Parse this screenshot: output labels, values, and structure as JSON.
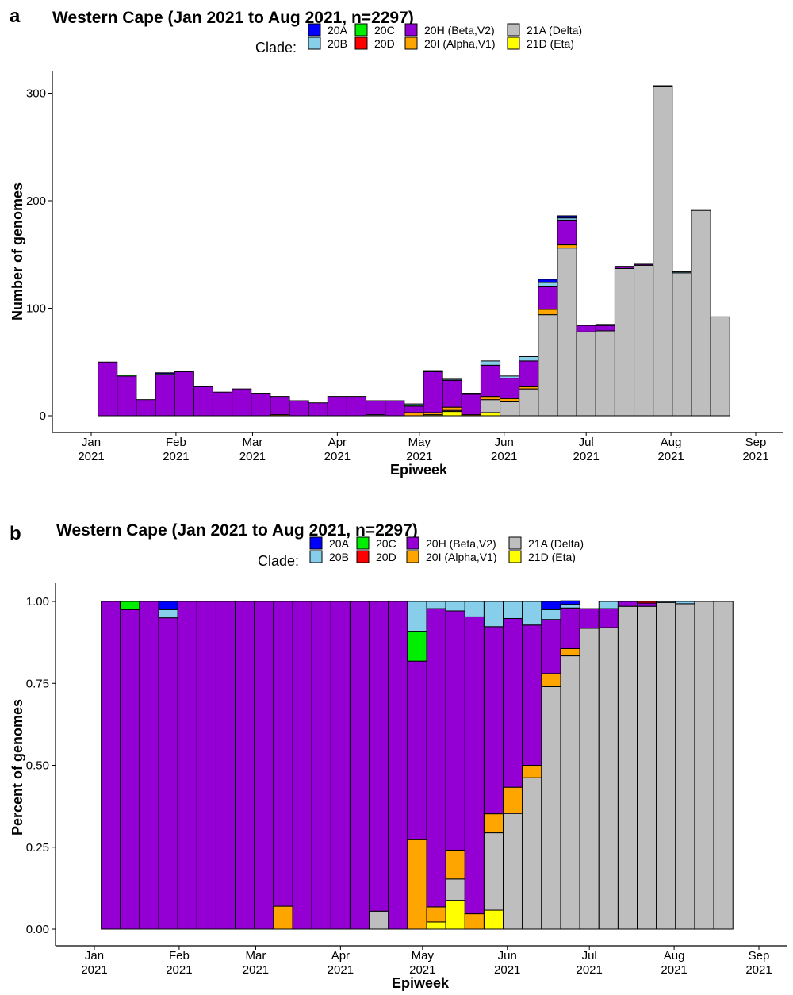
{
  "clades": [
    {
      "name": "20A",
      "color": "#0000FF"
    },
    {
      "name": "20B",
      "color": "#87CEEB"
    },
    {
      "name": "20C",
      "color": "#00EE00"
    },
    {
      "name": "20D",
      "color": "#FF0000"
    },
    {
      "name": "20H (Beta,V2)",
      "color": "#9400D3"
    },
    {
      "name": "20I (Alpha,V1)",
      "color": "#FFA500"
    },
    {
      "name": "21A (Delta)",
      "color": "#BEBEBE"
    },
    {
      "name": "21D (Eta)",
      "color": "#FFFF00"
    }
  ],
  "chart_data": [
    {
      "panel": "a",
      "type": "bar",
      "stacked": true,
      "title": "Western Cape (Jan 2021 to Aug 2021, n=2297)",
      "legend_title": "Clade:",
      "xlabel": "Epiweek",
      "ylabel": "Number of genomes",
      "ylim": [
        0,
        322
      ],
      "yticks": [
        0,
        100,
        200,
        300
      ],
      "xticks": [
        {
          "date": "2021-01-01",
          "label": [
            "Jan",
            "2021"
          ]
        },
        {
          "date": "2021-02-01",
          "label": [
            "Feb",
            "2021"
          ]
        },
        {
          "date": "2021-03-01",
          "label": [
            "Mar",
            "2021"
          ]
        },
        {
          "date": "2021-04-01",
          "label": [
            "Apr",
            "2021"
          ]
        },
        {
          "date": "2021-05-01",
          "label": [
            "May",
            "2021"
          ]
        },
        {
          "date": "2021-06-01",
          "label": [
            "Jun",
            "2021"
          ]
        },
        {
          "date": "2021-07-01",
          "label": [
            "Jul",
            "2021"
          ]
        },
        {
          "date": "2021-08-01",
          "label": [
            "Aug",
            "2021"
          ]
        },
        {
          "date": "2021-09-01",
          "label": [
            "Sep",
            "2021"
          ]
        }
      ],
      "x": [
        "2021-01-07",
        "2021-01-14",
        "2021-01-21",
        "2021-01-28",
        "2021-02-04",
        "2021-02-11",
        "2021-02-18",
        "2021-02-25",
        "2021-03-04",
        "2021-03-11",
        "2021-03-18",
        "2021-03-25",
        "2021-04-01",
        "2021-04-08",
        "2021-04-15",
        "2021-04-22",
        "2021-04-29",
        "2021-05-06",
        "2021-05-13",
        "2021-05-20",
        "2021-05-27",
        "2021-06-03",
        "2021-06-10",
        "2021-06-17",
        "2021-06-24",
        "2021-07-01",
        "2021-07-08",
        "2021-07-15",
        "2021-07-22",
        "2021-07-29",
        "2021-08-05",
        "2021-08-12",
        "2021-08-19"
      ],
      "series": [
        {
          "name": "21D (Eta)",
          "values": [
            0,
            0,
            0,
            0,
            0,
            0,
            0,
            0,
            0,
            0,
            0,
            0,
            0,
            0,
            0,
            0,
            0,
            1,
            4,
            0,
            3,
            0,
            0,
            0,
            0,
            0,
            0,
            0,
            0,
            0,
            0,
            0,
            0
          ]
        },
        {
          "name": "21A (Delta)",
          "values": [
            0,
            0,
            0,
            0,
            0,
            0,
            0,
            0,
            0,
            0,
            0,
            0,
            0,
            0,
            1,
            0,
            0,
            0,
            1,
            0,
            12,
            13,
            25,
            94,
            156,
            78,
            79,
            137,
            140,
            306,
            133,
            191,
            92
          ]
        },
        {
          "name": "20I (Alpha,V1)",
          "values": [
            0,
            0,
            0,
            0,
            0,
            0,
            0,
            0,
            0,
            1,
            0,
            0,
            0,
            0,
            0,
            0,
            3,
            2,
            3,
            1,
            3,
            3,
            2,
            5,
            3,
            0,
            0,
            0,
            0,
            0,
            0,
            0,
            0
          ]
        },
        {
          "name": "20H (Beta,V2)",
          "values": [
            50,
            37,
            15,
            38,
            41,
            27,
            22,
            25,
            21,
            17,
            14,
            12,
            18,
            18,
            13,
            14,
            6,
            38,
            25,
            19,
            29,
            19,
            24,
            21,
            23,
            6,
            5,
            2,
            1,
            0,
            0,
            0,
            0
          ]
        },
        {
          "name": "20D",
          "values": [
            0,
            0,
            0,
            0,
            0,
            0,
            0,
            0,
            0,
            0,
            0,
            0,
            0,
            0,
            0,
            0,
            0,
            0,
            0,
            0,
            0,
            0,
            0,
            0,
            0,
            0,
            0,
            0,
            0,
            0,
            0,
            0,
            0
          ]
        },
        {
          "name": "20C",
          "values": [
            0,
            1,
            0,
            0,
            0,
            0,
            0,
            0,
            0,
            0,
            0,
            0,
            0,
            0,
            0,
            0,
            1,
            0,
            0,
            0,
            0,
            0,
            0,
            0,
            0,
            0,
            0,
            0,
            0,
            0,
            0,
            0,
            0
          ]
        },
        {
          "name": "20B",
          "values": [
            0,
            0,
            0,
            1,
            0,
            0,
            0,
            0,
            0,
            0,
            0,
            0,
            0,
            0,
            0,
            0,
            1,
            1,
            1,
            1,
            4,
            2,
            4,
            4,
            2,
            0,
            1,
            0,
            0,
            1,
            1,
            0,
            0
          ]
        },
        {
          "name": "20A",
          "values": [
            0,
            0,
            0,
            1,
            0,
            0,
            0,
            0,
            0,
            0,
            0,
            0,
            0,
            0,
            0,
            0,
            0,
            0,
            0,
            0,
            0,
            0,
            0,
            3,
            2,
            0,
            0,
            0,
            0,
            0,
            0,
            0,
            0
          ]
        }
      ]
    },
    {
      "panel": "b",
      "type": "bar",
      "stacked": true,
      "title": "Western Cape (Jan 2021 to Aug 2021, n=2297)",
      "legend_title": "Clade:",
      "xlabel": "Epiweek",
      "ylabel": "Percent of genomes",
      "ylim": [
        0,
        1.05
      ],
      "yticks": [
        "0.00",
        "0.25",
        "0.50",
        "0.75",
        "1.00"
      ],
      "x": [
        "2021-01-07",
        "2021-01-14",
        "2021-01-21",
        "2021-01-28",
        "2021-02-04",
        "2021-02-11",
        "2021-02-18",
        "2021-02-25",
        "2021-03-04",
        "2021-03-11",
        "2021-03-18",
        "2021-03-25",
        "2021-04-01",
        "2021-04-08",
        "2021-04-15",
        "2021-04-22",
        "2021-04-29",
        "2021-05-06",
        "2021-05-13",
        "2021-05-20",
        "2021-05-27",
        "2021-06-03",
        "2021-06-10",
        "2021-06-17",
        "2021-06-24",
        "2021-07-01",
        "2021-07-08",
        "2021-07-15",
        "2021-07-22",
        "2021-07-29",
        "2021-08-05",
        "2021-08-12",
        "2021-08-19"
      ],
      "series": [
        {
          "name": "21D (Eta)",
          "values": [
            0,
            0,
            0,
            0,
            0,
            0,
            0,
            0,
            0,
            0,
            0,
            0,
            0,
            0,
            0,
            0,
            0,
            0.022,
            0.088,
            0,
            0.058,
            0,
            0,
            0,
            0,
            0,
            0,
            0,
            0,
            0,
            0,
            0,
            0
          ]
        },
        {
          "name": "21A (Delta)",
          "values": [
            0,
            0,
            0,
            0,
            0,
            0,
            0,
            0,
            0,
            0,
            0,
            0,
            0,
            0,
            0.055,
            0,
            0,
            0,
            0.065,
            0,
            0.236,
            0.353,
            0.462,
            0.74,
            0.834,
            0.918,
            0.92,
            0.985,
            0.985,
            0.997,
            0.993,
            1.0,
            1.0
          ]
        },
        {
          "name": "20I (Alpha,V1)",
          "values": [
            0,
            0,
            0,
            0,
            0,
            0,
            0,
            0,
            0,
            0.07,
            0,
            0,
            0,
            0,
            0,
            0,
            0.273,
            0.046,
            0.088,
            0.047,
            0.058,
            0.08,
            0.038,
            0.04,
            0.022,
            0,
            0,
            0,
            0,
            0,
            0,
            0,
            0
          ]
        },
        {
          "name": "20H (Beta,V2)",
          "values": [
            1.0,
            0.975,
            1.0,
            0.95,
            1.0,
            1.0,
            1.0,
            1.0,
            1.0,
            0.93,
            1.0,
            1.0,
            1.0,
            1.0,
            0.945,
            1.0,
            0.545,
            0.91,
            0.73,
            0.906,
            0.571,
            0.515,
            0.428,
            0.165,
            0.124,
            0.06,
            0.058,
            0.015,
            0.01,
            0,
            0,
            0,
            0
          ]
        },
        {
          "name": "20D",
          "values": [
            0,
            0,
            0,
            0,
            0,
            0,
            0,
            0,
            0,
            0,
            0,
            0,
            0,
            0,
            0,
            0,
            0,
            0,
            0,
            0,
            0,
            0,
            0,
            0,
            0,
            0,
            0,
            0,
            0.005,
            0,
            0,
            0,
            0
          ]
        },
        {
          "name": "20C",
          "values": [
            0,
            0.025,
            0,
            0,
            0,
            0,
            0,
            0,
            0,
            0,
            0,
            0,
            0,
            0,
            0,
            0,
            0.091,
            0,
            0,
            0,
            0,
            0,
            0,
            0,
            0,
            0,
            0,
            0,
            0,
            0,
            0,
            0,
            0
          ]
        },
        {
          "name": "20B",
          "values": [
            0,
            0,
            0,
            0.025,
            0,
            0,
            0,
            0,
            0,
            0,
            0,
            0,
            0,
            0,
            0,
            0,
            0.091,
            0.022,
            0.029,
            0.047,
            0.077,
            0.052,
            0.072,
            0.03,
            0.011,
            0,
            0.022,
            0,
            0,
            0.003,
            0.007,
            0,
            0
          ]
        },
        {
          "name": "20A",
          "values": [
            0,
            0,
            0,
            0.025,
            0,
            0,
            0,
            0,
            0,
            0,
            0,
            0,
            0,
            0,
            0,
            0,
            0,
            0,
            0,
            0,
            0,
            0,
            0,
            0.025,
            0.011,
            0,
            0,
            0,
            0,
            0,
            0,
            0,
            0
          ]
        }
      ]
    }
  ],
  "panels": {
    "a": {
      "letter": "a"
    },
    "b": {
      "letter": "b"
    }
  }
}
